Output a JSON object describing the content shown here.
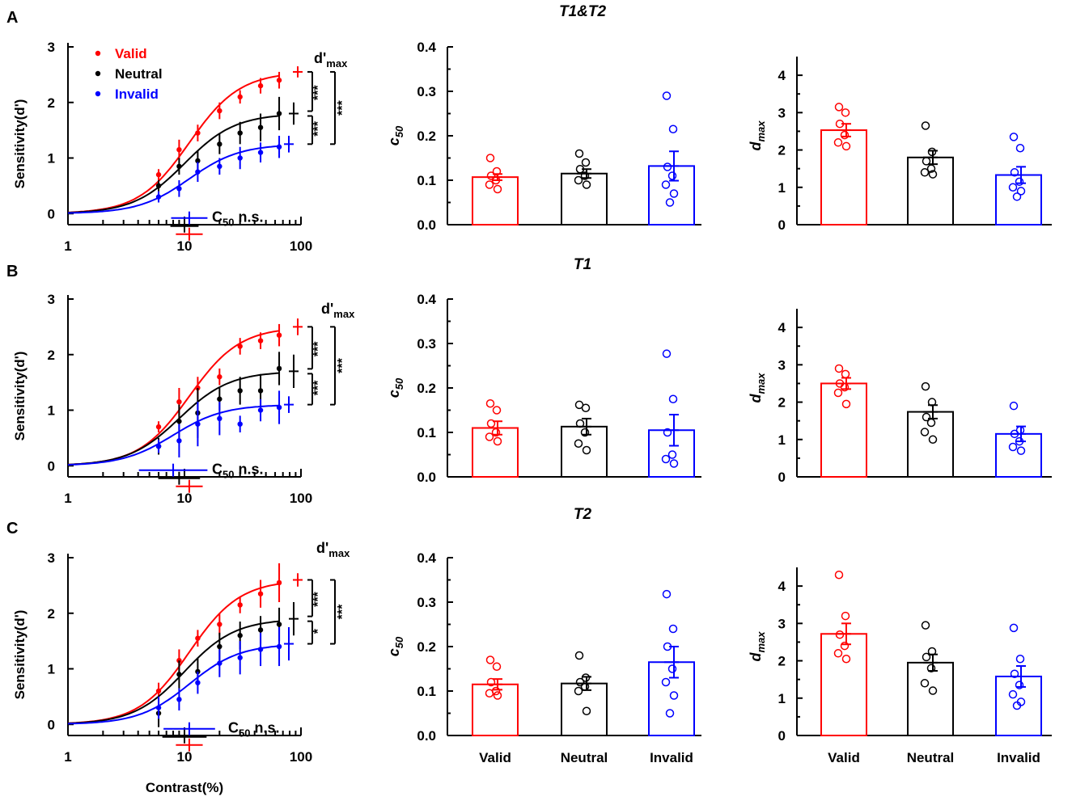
{
  "colors": {
    "valid": "#ff0000",
    "neutral": "#000000",
    "invalid": "#0000ff",
    "axis": "#000000"
  },
  "common": {
    "contrast_ylabel": "Sensitivity(d')",
    "c50_ylabel": "c",
    "c50_ylabel_sub": "50",
    "dmax_ylabel": "d",
    "dmax_ylabel_sub": "max",
    "dprime_max_label": "d'",
    "dprime_max_sub": "max",
    "c50_ns_main": "C",
    "c50_ns_sub": "50",
    "c50_ns_tail": " n.s.",
    "x_title": "Contrast(%)",
    "legend": [
      "Valid",
      "Neutral",
      "Invalid"
    ],
    "bar_categories": [
      "Valid",
      "Neutral",
      "Invalid"
    ]
  },
  "panels": [
    {
      "letter": "A",
      "title": "T1&T2",
      "sig": [
        "***",
        "***",
        "***"
      ]
    },
    {
      "letter": "B",
      "title": "T1",
      "sig": [
        "***",
        "***",
        "***"
      ]
    },
    {
      "letter": "C",
      "title": "T2",
      "sig": [
        "***",
        "*",
        "***"
      ]
    }
  ],
  "chart_data": [
    {
      "type": "line",
      "panel": "A",
      "title": "",
      "xlabel": "",
      "ylabel": "Sensitivity(d')",
      "x_scale": "log",
      "xlim": [
        1,
        100
      ],
      "ylim": [
        -0.2,
        3
      ],
      "xticks": [
        1,
        10,
        100
      ],
      "yticks": [
        0,
        1,
        2,
        3
      ],
      "x": [
        6,
        9,
        13,
        20,
        30,
        45,
        65
      ],
      "series": [
        {
          "name": "Valid",
          "values": [
            0.7,
            1.15,
            1.45,
            1.85,
            2.1,
            2.3,
            2.4
          ],
          "errors": [
            0.1,
            0.18,
            0.15,
            0.15,
            0.12,
            0.14,
            0.15
          ],
          "dmax": 2.55,
          "dmax_err": 0.1,
          "c50": 11,
          "c50_err": 1.5
        },
        {
          "name": "Neutral",
          "values": [
            0.5,
            0.85,
            0.95,
            1.25,
            1.45,
            1.55,
            1.8
          ],
          "errors": [
            0.1,
            0.15,
            0.18,
            0.18,
            0.2,
            0.25,
            0.3
          ],
          "dmax": 1.8,
          "dmax_err": 0.2,
          "c50": 10,
          "c50_err": 1.5
        },
        {
          "name": "Invalid",
          "values": [
            0.3,
            0.45,
            0.75,
            0.85,
            1.0,
            1.1,
            1.2
          ],
          "errors": [
            0.1,
            0.15,
            0.18,
            0.15,
            0.2,
            0.18,
            0.2
          ],
          "dmax": 1.25,
          "dmax_err": 0.15,
          "c50": 11,
          "c50_err": 2.5
        }
      ],
      "significance": [
        "***",
        "***",
        "***"
      ],
      "c50_note": "C50 n.s."
    },
    {
      "type": "bar",
      "panel": "A",
      "ylabel": "c50",
      "ylim": [
        0,
        0.4
      ],
      "yticks": [
        0.0,
        0.1,
        0.2,
        0.3,
        0.4
      ],
      "categories": [
        "Valid",
        "Neutral",
        "Invalid"
      ],
      "values": [
        0.107,
        0.115,
        0.132
      ],
      "errors": [
        0.007,
        0.01,
        0.033
      ],
      "points": [
        [
          0.15,
          0.12,
          0.11,
          0.1,
          0.09,
          0.08
        ],
        [
          0.16,
          0.14,
          0.125,
          0.11,
          0.1,
          0.09
        ],
        [
          0.29,
          0.215,
          0.13,
          0.11,
          0.09,
          0.07,
          0.05
        ]
      ]
    },
    {
      "type": "bar",
      "panel": "A",
      "ylabel": "dmax",
      "ylim": [
        0,
        4.5
      ],
      "yticks": [
        0,
        1,
        2,
        3,
        4
      ],
      "categories": [
        "Valid",
        "Neutral",
        "Invalid"
      ],
      "values": [
        2.53,
        1.8,
        1.33
      ],
      "errors": [
        0.17,
        0.18,
        0.22
      ],
      "points": [
        [
          3.15,
          3.0,
          2.7,
          2.4,
          2.2,
          2.1
        ],
        [
          2.65,
          1.95,
          1.7,
          1.5,
          1.4,
          1.35
        ],
        [
          2.35,
          2.05,
          1.4,
          1.15,
          1.0,
          0.9,
          0.75
        ]
      ]
    },
    {
      "type": "line",
      "panel": "B",
      "title": "",
      "xlabel": "",
      "ylabel": "Sensitivity(d')",
      "x_scale": "log",
      "xlim": [
        1,
        100
      ],
      "ylim": [
        -0.2,
        3
      ],
      "xticks": [
        1,
        10,
        100
      ],
      "yticks": [
        0,
        1,
        2,
        3
      ],
      "x": [
        6,
        9,
        13,
        20,
        30,
        45,
        65
      ],
      "series": [
        {
          "name": "Valid",
          "values": [
            0.7,
            1.15,
            1.4,
            1.6,
            2.15,
            2.25,
            2.35
          ],
          "errors": [
            0.1,
            0.25,
            0.2,
            0.15,
            0.15,
            0.15,
            0.2
          ],
          "dmax": 2.5,
          "dmax_err": 0.15,
          "c50": 11,
          "c50_err": 1.5
        },
        {
          "name": "Neutral",
          "values": [
            0.35,
            0.8,
            0.95,
            1.2,
            1.35,
            1.35,
            1.75
          ],
          "errors": [
            0.15,
            0.3,
            0.45,
            0.2,
            0.25,
            0.3,
            0.3
          ],
          "dmax": 1.7,
          "dmax_err": 0.3,
          "c50": 9,
          "c50_err": 2.5
        },
        {
          "name": "Invalid",
          "values": [
            0.35,
            0.45,
            0.75,
            0.85,
            0.75,
            1.0,
            1.05
          ],
          "errors": [
            0.12,
            0.3,
            0.4,
            0.3,
            0.15,
            0.2,
            0.3
          ],
          "dmax": 1.1,
          "dmax_err": 0.15,
          "c50": 8,
          "c50_err": 4
        }
      ],
      "significance": [
        "***",
        "***",
        "***"
      ],
      "c50_note": "C50 n.s."
    },
    {
      "type": "bar",
      "panel": "B",
      "ylabel": "c50",
      "ylim": [
        0,
        0.4
      ],
      "yticks": [
        0.0,
        0.1,
        0.2,
        0.3,
        0.4
      ],
      "categories": [
        "Valid",
        "Neutral",
        "Invalid"
      ],
      "values": [
        0.11,
        0.113,
        0.105
      ],
      "errors": [
        0.015,
        0.018,
        0.035
      ],
      "points": [
        [
          0.165,
          0.15,
          0.12,
          0.1,
          0.09,
          0.08
        ],
        [
          0.162,
          0.155,
          0.12,
          0.1,
          0.075,
          0.06
        ],
        [
          0.277,
          0.175,
          0.1,
          0.05,
          0.04,
          0.03
        ]
      ]
    },
    {
      "type": "bar",
      "panel": "B",
      "ylabel": "dmax",
      "ylim": [
        0,
        4.5
      ],
      "yticks": [
        0,
        1,
        2,
        3,
        4
      ],
      "categories": [
        "Valid",
        "Neutral",
        "Invalid"
      ],
      "values": [
        2.5,
        1.74,
        1.15
      ],
      "errors": [
        0.15,
        0.18,
        0.2
      ],
      "points": [
        [
          2.9,
          2.75,
          2.5,
          2.4,
          2.25,
          1.95
        ],
        [
          2.42,
          2.0,
          1.6,
          1.45,
          1.2,
          1.0
        ],
        [
          1.9,
          1.25,
          1.15,
          0.95,
          0.8,
          0.7
        ]
      ]
    },
    {
      "type": "line",
      "panel": "C",
      "title": "",
      "xlabel": "Contrast(%)",
      "ylabel": "Sensitivity(d')",
      "x_scale": "log",
      "xlim": [
        1,
        100
      ],
      "ylim": [
        -0.2,
        3
      ],
      "xticks": [
        1,
        10,
        100
      ],
      "yticks": [
        0,
        1,
        2,
        3
      ],
      "x": [
        6,
        9,
        13,
        20,
        30,
        45,
        65
      ],
      "series": [
        {
          "name": "Valid",
          "values": [
            0.6,
            1.15,
            1.55,
            1.8,
            2.15,
            2.35,
            2.55
          ],
          "errors": [
            0.15,
            0.2,
            0.15,
            0.2,
            0.15,
            0.25,
            0.35
          ],
          "dmax": 2.6,
          "dmax_err": 0.12,
          "c50": 11,
          "c50_err": 1.5
        },
        {
          "name": "Neutral",
          "values": [
            0.2,
            0.9,
            0.95,
            1.4,
            1.6,
            1.7,
            1.8
          ],
          "errors": [
            0.25,
            0.25,
            0.25,
            0.25,
            0.25,
            0.25,
            0.3
          ],
          "dmax": 1.9,
          "dmax_err": 0.3,
          "c50": 10,
          "c50_err": 3
        },
        {
          "name": "Invalid",
          "values": [
            0.3,
            0.45,
            0.75,
            1.1,
            1.2,
            1.35,
            1.4
          ],
          "errors": [
            0.2,
            0.2,
            0.2,
            0.25,
            0.3,
            0.3,
            0.35
          ],
          "dmax": 1.45,
          "dmax_err": 0.3,
          "c50": 11,
          "c50_err": 4
        }
      ],
      "significance": [
        "***",
        "*",
        "***"
      ],
      "c50_note": "C50 n.s."
    },
    {
      "type": "bar",
      "panel": "C",
      "ylabel": "c50",
      "ylim": [
        0,
        0.4
      ],
      "yticks": [
        0.0,
        0.1,
        0.2,
        0.3,
        0.4
      ],
      "categories": [
        "Valid",
        "Neutral",
        "Invalid"
      ],
      "values": [
        0.115,
        0.117,
        0.165
      ],
      "errors": [
        0.012,
        0.015,
        0.035
      ],
      "points": [
        [
          0.17,
          0.155,
          0.12,
          0.1,
          0.095,
          0.09
        ],
        [
          0.18,
          0.13,
          0.12,
          0.11,
          0.1,
          0.055
        ],
        [
          0.318,
          0.24,
          0.2,
          0.15,
          0.12,
          0.09,
          0.05
        ]
      ]
    },
    {
      "type": "bar",
      "panel": "C",
      "ylabel": "dmax",
      "ylim": [
        0,
        4.5
      ],
      "yticks": [
        0,
        1,
        2,
        3,
        4
      ],
      "categories": [
        "Valid",
        "Neutral",
        "Invalid"
      ],
      "values": [
        2.72,
        1.95,
        1.58
      ],
      "errors": [
        0.28,
        0.22,
        0.28
      ],
      "points": [
        [
          4.3,
          3.2,
          2.7,
          2.4,
          2.2,
          2.05
        ],
        [
          2.95,
          2.25,
          2.1,
          1.8,
          1.4,
          1.2
        ],
        [
          2.88,
          2.05,
          1.65,
          1.35,
          1.1,
          0.9,
          0.8
        ]
      ]
    }
  ]
}
